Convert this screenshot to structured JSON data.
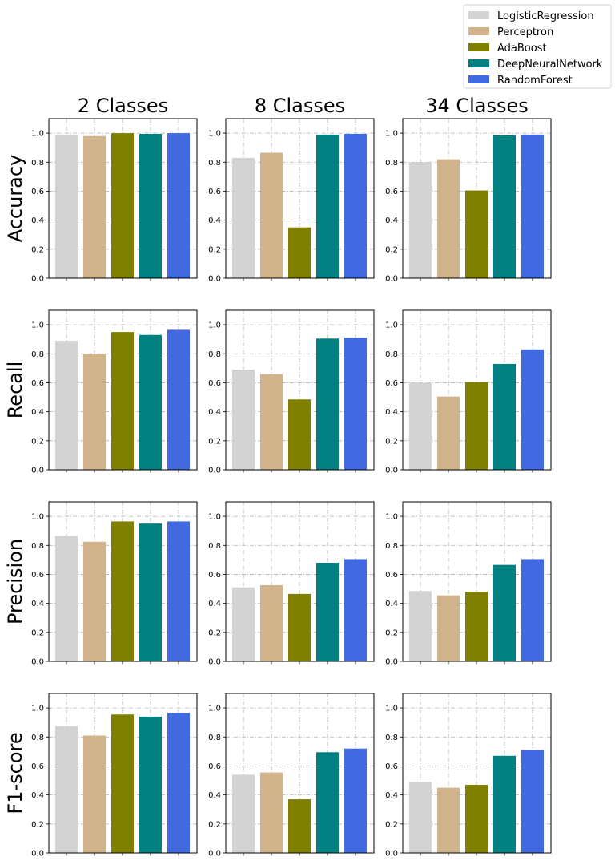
{
  "chart_data": {
    "type": "bar",
    "models": [
      "LogisticRegression",
      "Perceptron",
      "AdaBoost",
      "DeepNeuralNetwork",
      "RandomForest"
    ],
    "colors": {
      "LogisticRegression": "#d3d3d3",
      "Perceptron": "#d2b48c",
      "AdaBoost": "#808000",
      "DeepNeuralNetwork": "#008080",
      "RandomForest": "#4169e1"
    },
    "columns": [
      "2 Classes",
      "8 Classes",
      "34 Classes"
    ],
    "metrics": [
      "Accuracy",
      "Recall",
      "Precision",
      "F1-score"
    ],
    "ylim": [
      0,
      1.1
    ],
    "yticks": [
      "0.0",
      "0.2",
      "0.4",
      "0.6",
      "0.8",
      "1.0"
    ],
    "grid": true,
    "legend": "top-right",
    "values": {
      "Accuracy": {
        "2 Classes": [
          0.99,
          0.98,
          1.0,
          0.995,
          1.0
        ],
        "8 Classes": [
          0.83,
          0.865,
          0.35,
          0.99,
          0.995
        ],
        "34 Classes": [
          0.8,
          0.82,
          0.605,
          0.985,
          0.99
        ]
      },
      "Recall": {
        "2 Classes": [
          0.89,
          0.8,
          0.95,
          0.93,
          0.965
        ],
        "8 Classes": [
          0.69,
          0.66,
          0.485,
          0.905,
          0.91
        ],
        "34 Classes": [
          0.6,
          0.505,
          0.605,
          0.73,
          0.83
        ]
      },
      "Precision": {
        "2 Classes": [
          0.865,
          0.825,
          0.965,
          0.95,
          0.965
        ],
        "8 Classes": [
          0.51,
          0.525,
          0.465,
          0.68,
          0.705
        ],
        "34 Classes": [
          0.485,
          0.455,
          0.48,
          0.665,
          0.705
        ]
      },
      "F1-score": {
        "2 Classes": [
          0.875,
          0.81,
          0.955,
          0.94,
          0.965
        ],
        "8 Classes": [
          0.54,
          0.555,
          0.37,
          0.695,
          0.72
        ],
        "34 Classes": [
          0.49,
          0.45,
          0.47,
          0.67,
          0.71
        ]
      }
    }
  }
}
